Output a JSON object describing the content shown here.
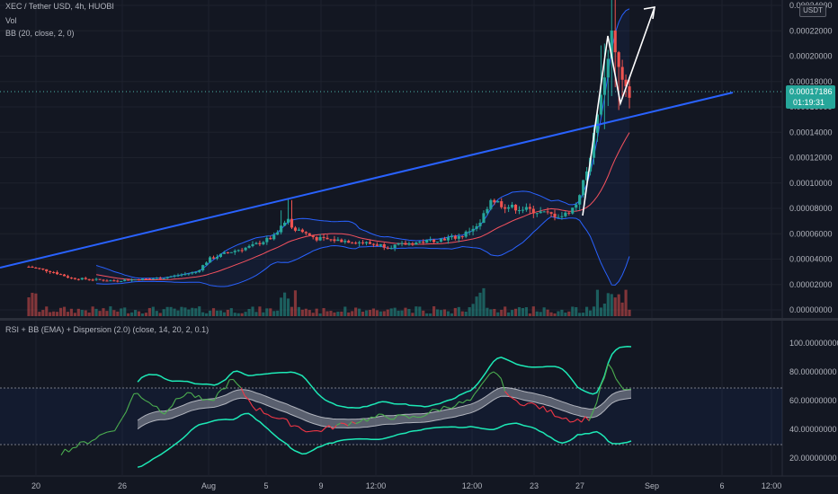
{
  "header": {
    "symbol_line": "XEC / Tether USD, 4h, HUOBI",
    "vol_label": "Vol",
    "bb_label": "BB (20, close, 2, 0)",
    "indicator_label": "RSI + BB (EMA) + Dispersion (2.0) (close, 14, 20, 2, 0.1)",
    "currency_badge": "USDT"
  },
  "price_axis": {
    "ticks": [
      "0.00024000",
      "0.00022000",
      "0.00020000",
      "0.00018000",
      "0.00016000",
      "0.00014000",
      "0.00012000",
      "0.00010000",
      "0.00008000",
      "0.00006000",
      "0.00004000",
      "0.00002000",
      "0.00000000"
    ],
    "last_price": "0.00017186",
    "countdown": "01:19:31"
  },
  "rsi_axis": {
    "ticks": [
      "100.00000000",
      "80.00000000",
      "60.00000000",
      "40.00000000",
      "20.00000000"
    ]
  },
  "time_axis": {
    "ticks": [
      "20",
      "26",
      "Aug",
      "5",
      "9",
      "12:00",
      "12:00",
      "23",
      "27",
      "Sep",
      "6",
      "12:00"
    ]
  },
  "colors": {
    "background": "#131722",
    "up": "#26a69a",
    "down": "#ef5350",
    "bb_band": "#2962ff",
    "bb_basis": "#f7525f",
    "trendline": "#2962ff",
    "arrow": "#ffffff",
    "rsi_outer": "#1de9b6",
    "rsi_inner": "#b2b5be",
    "rsi_line_up": "#4caf50",
    "rsi_line_down": "#f23645"
  },
  "chart_data": [
    {
      "type": "candlestick",
      "title": "XEC / Tether USD, 4h, HUOBI",
      "ylim": [
        0,
        0.00024
      ],
      "x_ticks": [
        "20",
        "26",
        "Aug",
        "5",
        "9",
        "12:00",
        "12:00",
        "23",
        "27",
        "Sep",
        "6",
        "12:00"
      ],
      "last_price": 0.00017186,
      "series_shape": [
        {
          "t": 0.0,
          "p": 3.4e-05
        },
        {
          "t": 0.04,
          "p": 3e-05
        },
        {
          "t": 0.07,
          "p": 2.5e-05
        },
        {
          "t": 0.14,
          "p": 2.3e-05
        },
        {
          "t": 0.22,
          "p": 2.5e-05
        },
        {
          "t": 0.28,
          "p": 3e-05
        },
        {
          "t": 0.3,
          "p": 4e-05
        },
        {
          "t": 0.33,
          "p": 4.5e-05
        },
        {
          "t": 0.37,
          "p": 5e-05
        },
        {
          "t": 0.41,
          "p": 5.8e-05
        },
        {
          "t": 0.43,
          "p": 7.2e-05
        },
        {
          "t": 0.44,
          "p": 6.5e-05
        },
        {
          "t": 0.48,
          "p": 5.6e-05
        },
        {
          "t": 0.54,
          "p": 5.4e-05
        },
        {
          "t": 0.6,
          "p": 5e-05
        },
        {
          "t": 0.66,
          "p": 5.4e-05
        },
        {
          "t": 0.72,
          "p": 5.8e-05
        },
        {
          "t": 0.75,
          "p": 6.8e-05
        },
        {
          "t": 0.77,
          "p": 8.8e-05
        },
        {
          "t": 0.79,
          "p": 8.2e-05
        },
        {
          "t": 0.83,
          "p": 7.9e-05
        },
        {
          "t": 0.87,
          "p": 7.5e-05
        },
        {
          "t": 0.89,
          "p": 7.4e-05
        },
        {
          "t": 0.91,
          "p": 8.2e-05
        },
        {
          "t": 0.93,
          "p": 0.00011
        },
        {
          "t": 0.95,
          "p": 0.00016
        },
        {
          "t": 0.97,
          "p": 0.000218
        },
        {
          "t": 0.985,
          "p": 0.000185
        },
        {
          "t": 1.0,
          "p": 0.000172
        }
      ]
    },
    {
      "type": "line",
      "title": "RSI + BB (EMA) + Dispersion (2.0) (close, 14, 20, 2, 0.1)",
      "ylim": [
        20,
        100
      ],
      "levels": [
        70,
        30
      ],
      "series_shape": [
        {
          "t": 0.0,
          "v": 24
        },
        {
          "t": 0.05,
          "v": 32
        },
        {
          "t": 0.1,
          "v": 42
        },
        {
          "t": 0.13,
          "v": 66
        },
        {
          "t": 0.18,
          "v": 52
        },
        {
          "t": 0.22,
          "v": 66
        },
        {
          "t": 0.26,
          "v": 58
        },
        {
          "t": 0.3,
          "v": 75
        },
        {
          "t": 0.34,
          "v": 55
        },
        {
          "t": 0.39,
          "v": 46
        },
        {
          "t": 0.44,
          "v": 38
        },
        {
          "t": 0.5,
          "v": 44
        },
        {
          "t": 0.56,
          "v": 49
        },
        {
          "t": 0.62,
          "v": 48
        },
        {
          "t": 0.67,
          "v": 55
        },
        {
          "t": 0.72,
          "v": 60
        },
        {
          "t": 0.76,
          "v": 82
        },
        {
          "t": 0.79,
          "v": 60
        },
        {
          "t": 0.83,
          "v": 57
        },
        {
          "t": 0.87,
          "v": 50
        },
        {
          "t": 0.9,
          "v": 46
        },
        {
          "t": 0.93,
          "v": 48
        },
        {
          "t": 0.96,
          "v": 85
        },
        {
          "t": 0.98,
          "v": 70
        },
        {
          "t": 1.0,
          "v": 66
        }
      ]
    }
  ]
}
